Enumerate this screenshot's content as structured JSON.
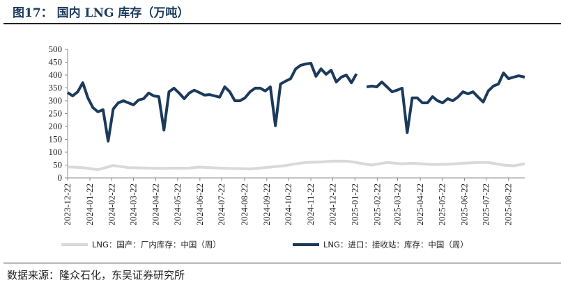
{
  "title": "图17：  国内 LNG 库存（万吨）",
  "source": "数据来源：隆众石化，东吴证券研究所",
  "chart_data": {
    "type": "line",
    "title": "国内 LNG 库存（万吨）",
    "ylim": [
      0,
      500
    ],
    "yticks": [
      0,
      50,
      100,
      150,
      200,
      250,
      300,
      350,
      400,
      450,
      500
    ],
    "x_unit": "weeks since 2023-12-22",
    "xticks": [
      {
        "w": 0,
        "label": "2023-12-22"
      },
      {
        "w": 4.4,
        "label": "2024-01-22"
      },
      {
        "w": 8.7,
        "label": "2024-02-22"
      },
      {
        "w": 13,
        "label": "2024-03-22"
      },
      {
        "w": 17.4,
        "label": "2024-04-22"
      },
      {
        "w": 21.7,
        "label": "2024-05-22"
      },
      {
        "w": 26.1,
        "label": "2024-06-22"
      },
      {
        "w": 30.4,
        "label": "2024-07-22"
      },
      {
        "w": 34.9,
        "label": "2024-08-22"
      },
      {
        "w": 39.3,
        "label": "2024-09-22"
      },
      {
        "w": 43.6,
        "label": "2024-10-22"
      },
      {
        "w": 48,
        "label": "2024-11-22"
      },
      {
        "w": 52.3,
        "label": "2024-12-22"
      },
      {
        "w": 56.7,
        "label": "2025-01-22"
      },
      {
        "w": 61.1,
        "label": "2025-02-22"
      },
      {
        "w": 65.1,
        "label": "2025-03-22"
      },
      {
        "w": 69.6,
        "label": "2025-04-22"
      },
      {
        "w": 73.9,
        "label": "2025-05-22"
      },
      {
        "w": 78.3,
        "label": "2025-06-22"
      },
      {
        "w": 82.6,
        "label": "2025-07-22"
      },
      {
        "w": 87,
        "label": "2025-08-22"
      }
    ],
    "xmax": 90.2,
    "series": [
      {
        "name": "LNG：国产：厂内库存：中国（周）",
        "color": "#d9d9d9",
        "points": [
          [
            0,
            43
          ],
          [
            3,
            40
          ],
          [
            6,
            32
          ],
          [
            9,
            48
          ],
          [
            12,
            40
          ],
          [
            18,
            37
          ],
          [
            24,
            38
          ],
          [
            26,
            42
          ],
          [
            30,
            38
          ],
          [
            36,
            35
          ],
          [
            40,
            42
          ],
          [
            43,
            48
          ],
          [
            45,
            55
          ],
          [
            47,
            60
          ],
          [
            50,
            62
          ],
          [
            52,
            65
          ],
          [
            55,
            65
          ],
          [
            57,
            60
          ],
          [
            57.4,
            58
          ],
          [
            60,
            50
          ],
          [
            63,
            60
          ],
          [
            66,
            55
          ],
          [
            68,
            57
          ],
          [
            72,
            52
          ],
          [
            75,
            53
          ],
          [
            79,
            58
          ],
          [
            81,
            60
          ],
          [
            83,
            60
          ],
          [
            86,
            50
          ],
          [
            88,
            47
          ],
          [
            90.2,
            55
          ]
        ]
      },
      {
        "name": "LNG：进口：接收站：库存：中国（周）",
        "color": "#1b3a5c",
        "points": [
          [
            0,
            332
          ],
          [
            1,
            319
          ],
          [
            2,
            335
          ],
          [
            3,
            370
          ],
          [
            4,
            311
          ],
          [
            5,
            273
          ],
          [
            6,
            257
          ],
          [
            7,
            265
          ],
          [
            8,
            143
          ],
          [
            9,
            268
          ],
          [
            10,
            292
          ],
          [
            11,
            300
          ],
          [
            12,
            292
          ],
          [
            13,
            284
          ],
          [
            14,
            303
          ],
          [
            15,
            308
          ],
          [
            16,
            330
          ],
          [
            17,
            319
          ],
          [
            18,
            316
          ],
          [
            19,
            186
          ],
          [
            20,
            335
          ],
          [
            21,
            349
          ],
          [
            22,
            330
          ],
          [
            23,
            308
          ],
          [
            24,
            330
          ],
          [
            25,
            341
          ],
          [
            26,
            332
          ],
          [
            27,
            322
          ],
          [
            28,
            324
          ],
          [
            29,
            319
          ],
          [
            30,
            314
          ],
          [
            31,
            354
          ],
          [
            32,
            335
          ],
          [
            33,
            300
          ],
          [
            34,
            300
          ],
          [
            35,
            311
          ],
          [
            36,
            335
          ],
          [
            37,
            349
          ],
          [
            38,
            349
          ],
          [
            39,
            338
          ],
          [
            40,
            354
          ],
          [
            41,
            203
          ],
          [
            42,
            365
          ],
          [
            43,
            376
          ],
          [
            44,
            386
          ],
          [
            45,
            424
          ],
          [
            46,
            438
          ],
          [
            47,
            443
          ],
          [
            48,
            446
          ],
          [
            49,
            395
          ],
          [
            50,
            424
          ],
          [
            51,
            403
          ],
          [
            52,
            419
          ],
          [
            53,
            373
          ],
          [
            54,
            392
          ],
          [
            55,
            400
          ],
          [
            56,
            370
          ],
          [
            57,
            405
          ],
          [
            58.7,
            null
          ],
          [
            59,
            354
          ],
          [
            60,
            357
          ],
          [
            61,
            354
          ],
          [
            62,
            373
          ],
          [
            63,
            354
          ],
          [
            64,
            335
          ],
          [
            65,
            341
          ],
          [
            66,
            349
          ],
          [
            67,
            176
          ],
          [
            68,
            311
          ],
          [
            69,
            311
          ],
          [
            70,
            292
          ],
          [
            71,
            292
          ],
          [
            72,
            316
          ],
          [
            73,
            300
          ],
          [
            74,
            292
          ],
          [
            75,
            308
          ],
          [
            76,
            300
          ],
          [
            77,
            314
          ],
          [
            78,
            335
          ],
          [
            79,
            327
          ],
          [
            80,
            335
          ],
          [
            81,
            314
          ],
          [
            82,
            295
          ],
          [
            83,
            338
          ],
          [
            84,
            357
          ],
          [
            85,
            365
          ],
          [
            86,
            408
          ],
          [
            87,
            386
          ],
          [
            88,
            392
          ],
          [
            89,
            397
          ],
          [
            90.2,
            392
          ]
        ]
      }
    ],
    "legend": [
      "LNG：国产：厂内库存：中国（周）",
      "LNG：进口：接收站：库存：中国（周）"
    ],
    "legend_position": "bottom"
  }
}
